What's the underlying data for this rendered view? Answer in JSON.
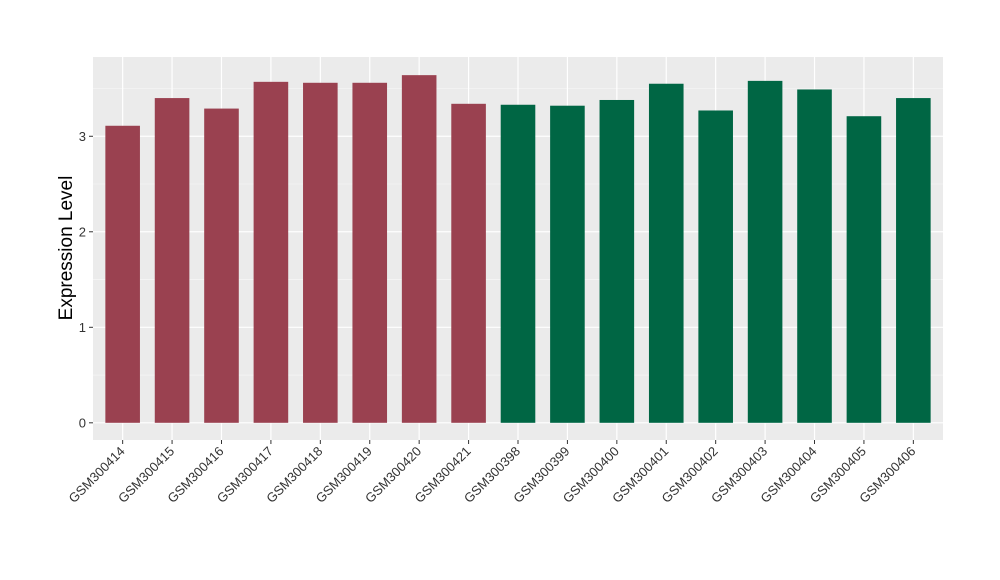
{
  "chart_data": {
    "type": "bar",
    "ylabel": "Expression Level",
    "xlabel": "",
    "ylim": [
      -0.18,
      3.83
    ],
    "yticks": [
      0,
      1,
      2,
      3
    ],
    "grid": true,
    "categories": [
      "GSM300414",
      "GSM300415",
      "GSM300416",
      "GSM300417",
      "GSM300418",
      "GSM300419",
      "GSM300420",
      "GSM300421",
      "GSM300398",
      "GSM300399",
      "GSM300400",
      "GSM300401",
      "GSM300402",
      "GSM300403",
      "GSM300404",
      "GSM300405",
      "GSM300406"
    ],
    "values": [
      3.11,
      3.4,
      3.29,
      3.57,
      3.56,
      3.56,
      3.64,
      3.34,
      3.33,
      3.32,
      3.38,
      3.55,
      3.27,
      3.58,
      3.49,
      3.21,
      3.4
    ],
    "groups": [
      "g1",
      "g1",
      "g1",
      "g1",
      "g1",
      "g1",
      "g1",
      "g1",
      "g2",
      "g2",
      "g2",
      "g2",
      "g2",
      "g2",
      "g2",
      "g2",
      "g2"
    ],
    "colors": {
      "g1": "#9a4150",
      "g2": "#006644"
    },
    "panel_background": "#ebebeb",
    "grid_major_color": "#ffffff"
  }
}
